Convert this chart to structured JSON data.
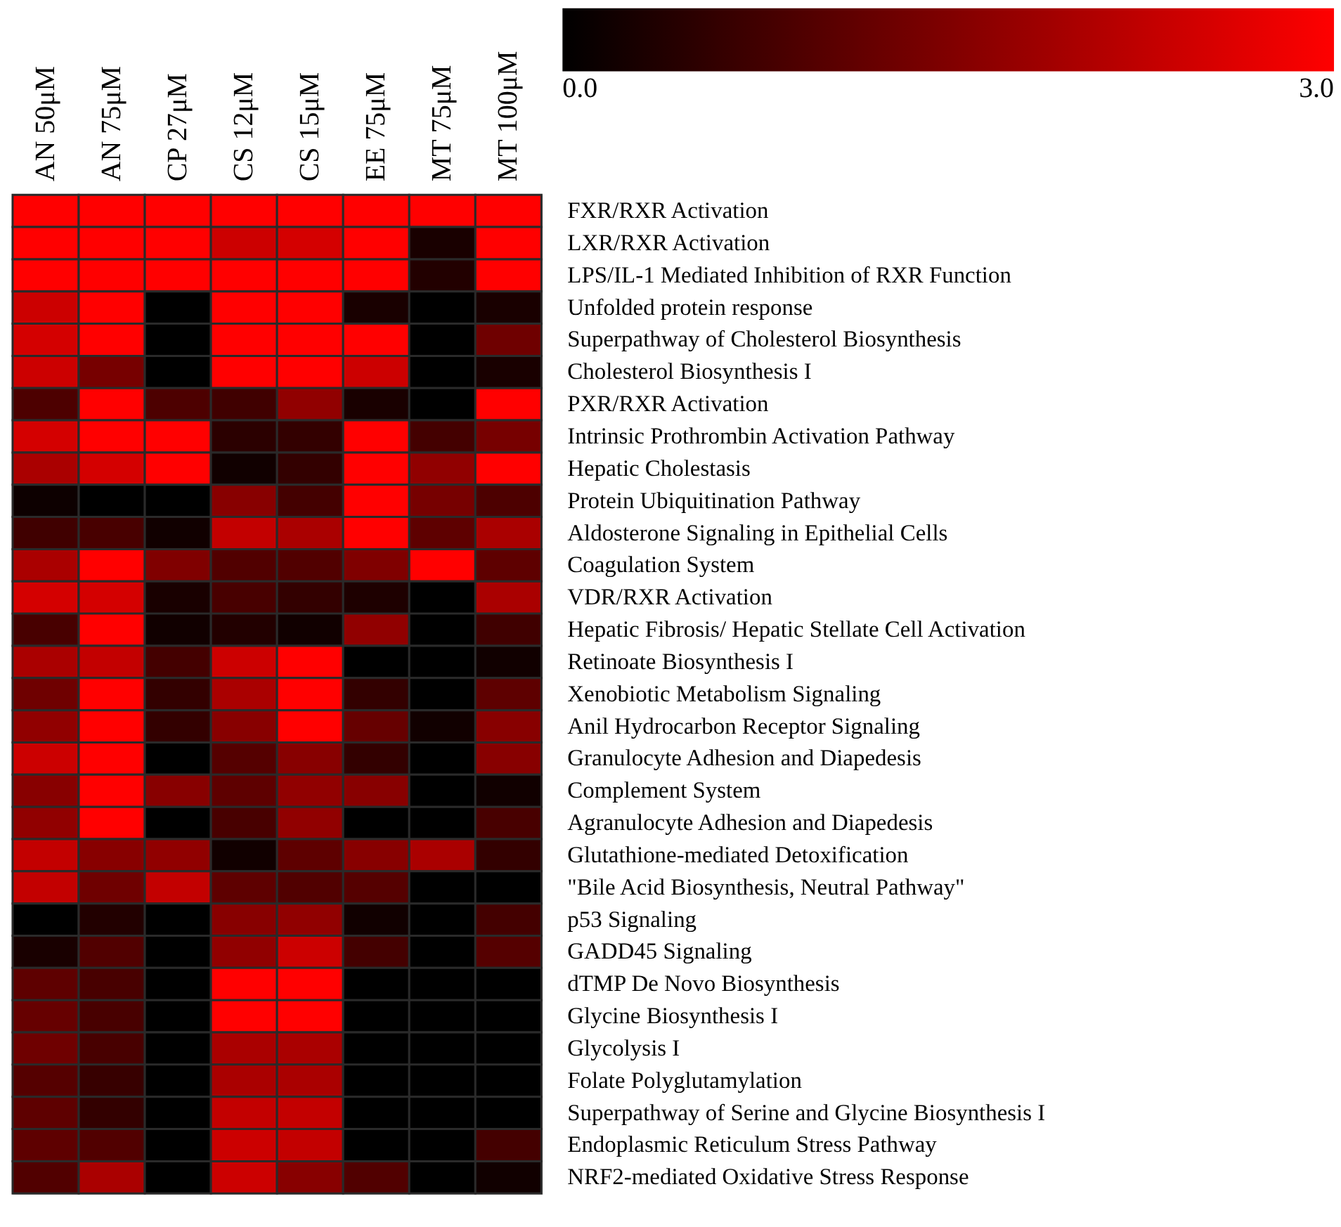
{
  "chart_data": {
    "type": "heatmap",
    "categories": [
      "AN 50μM",
      "AN 75μM",
      "CP 27μM",
      "CS 12μM",
      "CS 15μM",
      "EE 75μM",
      "MT 75μM",
      "MT 100μM"
    ],
    "y_categories": [
      "FXR/RXR Activation",
      "LXR/RXR Activation",
      "LPS/IL-1 Mediated Inhibition of RXR Function",
      "Unfolded protein response",
      "Superpathway of Cholesterol Biosynthesis",
      "Cholesterol Biosynthesis I",
      "PXR/RXR Activation",
      "Intrinsic Prothrombin Activation Pathway",
      "Hepatic Cholestasis",
      "Protein Ubiquitination Pathway",
      "Aldosterone Signaling in Epithelial Cells",
      "Coagulation System",
      "VDR/RXR Activation",
      "Hepatic Fibrosis/ Hepatic Stellate Cell Activation",
      "Retinoate Biosynthesis I",
      "Xenobiotic Metabolism Signaling",
      "Anil Hydrocarbon Receptor Signaling",
      "Granulocyte Adhesion and Diapedesis",
      "Complement System",
      "Agranulocyte Adhesion and Diapedesis",
      "Glutathione-mediated Detoxification",
      "\"Bile Acid Biosynthesis, Neutral Pathway\"",
      "p53 Signaling",
      "GADD45 Signaling",
      "dTMP De Novo Biosynthesis",
      "Glycine Biosynthesis I",
      "Glycolysis I",
      "Folate Polyglutamylation",
      "Superpathway of Serine and Glycine Biosynthesis I",
      "Endoplasmic Reticulum Stress Pathway",
      "NRF2-mediated Oxidative Stress Response"
    ],
    "cells": [
      [
        3,
        3,
        3,
        3,
        3,
        3,
        3,
        3
      ],
      [
        3,
        3,
        3,
        2.4,
        2.5,
        3,
        0.3,
        3
      ],
      [
        3,
        3,
        3,
        3,
        3,
        3,
        0.4,
        3
      ],
      [
        2.4,
        3,
        0,
        3,
        3,
        0.3,
        0,
        0.3
      ],
      [
        2.5,
        3,
        0,
        3,
        3,
        3,
        0,
        1.3
      ],
      [
        2.4,
        1.4,
        0,
        3,
        3,
        2.4,
        0,
        0.3
      ],
      [
        0.9,
        3,
        0.9,
        0.75,
        1.7,
        0.3,
        0,
        3
      ],
      [
        2.5,
        3,
        3,
        0.5,
        0.6,
        3,
        0.8,
        1.4
      ],
      [
        2.0,
        2.5,
        3,
        0.2,
        0.6,
        3,
        1.7,
        3
      ],
      [
        0.15,
        0,
        0,
        1.6,
        0.8,
        3,
        1.4,
        0.9
      ],
      [
        0.75,
        0.85,
        0.2,
        2.3,
        2.0,
        3,
        1.1,
        2.0
      ],
      [
        2.0,
        3,
        1.5,
        0.95,
        0.95,
        1.5,
        3,
        1.1
      ],
      [
        2.5,
        2.5,
        0.3,
        0.85,
        0.6,
        0.35,
        0,
        2.0
      ],
      [
        0.85,
        3,
        0.2,
        0.4,
        0.2,
        1.7,
        0,
        0.75
      ],
      [
        2.0,
        2.3,
        0.8,
        2.4,
        3,
        0,
        0,
        0.2
      ],
      [
        1.3,
        3,
        0.6,
        2.0,
        3,
        0.6,
        0,
        1.1
      ],
      [
        1.7,
        3,
        0.6,
        1.6,
        3,
        1.2,
        0.2,
        1.6
      ],
      [
        2.4,
        3,
        0,
        1.0,
        1.6,
        0.6,
        0,
        1.6
      ],
      [
        1.6,
        3,
        1.6,
        1.1,
        1.7,
        1.6,
        0,
        0.2
      ],
      [
        1.7,
        3,
        0,
        0.85,
        1.7,
        0,
        0,
        0.85
      ],
      [
        2.3,
        1.6,
        1.7,
        0.2,
        1.1,
        1.6,
        2.0,
        0.6
      ],
      [
        2.3,
        1.3,
        2.3,
        1.1,
        0.95,
        1.0,
        0,
        0
      ],
      [
        0,
        0.4,
        0,
        1.6,
        1.7,
        0.2,
        0,
        0.8
      ],
      [
        0.3,
        0.95,
        0,
        1.7,
        2.4,
        0.8,
        0,
        1.0
      ],
      [
        1.1,
        0.85,
        0,
        3,
        3,
        0,
        0,
        0
      ],
      [
        1.2,
        0.85,
        0,
        3,
        3,
        0,
        0,
        0
      ],
      [
        1.3,
        0.85,
        0,
        2.0,
        2.0,
        0,
        0,
        0
      ],
      [
        1.0,
        0.65,
        0,
        2.0,
        2.0,
        0,
        0,
        0
      ],
      [
        1.1,
        0.6,
        0,
        2.3,
        2.3,
        0,
        0,
        0
      ],
      [
        1.1,
        0.95,
        0,
        2.4,
        2.3,
        0,
        0,
        0.8
      ],
      [
        0.95,
        2.0,
        0,
        2.4,
        1.6,
        0.95,
        0,
        0.2
      ]
    ],
    "clim": [
      0,
      3
    ],
    "cticks": [
      {
        "value": 0,
        "label": "0.0"
      },
      {
        "value": 3,
        "label": "3.0"
      }
    ],
    "grid": false
  }
}
